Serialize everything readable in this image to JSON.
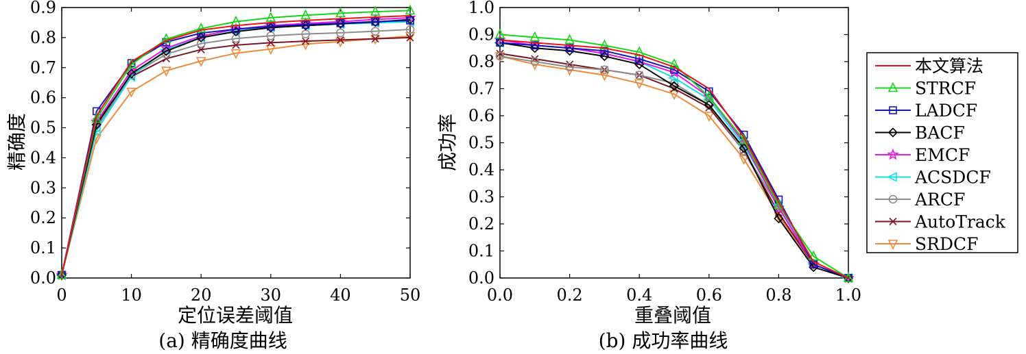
{
  "chart_data": [
    {
      "type": "line",
      "caption": "(a) 精确度曲线",
      "xlabel": "定位误差阈值",
      "ylabel": "精确度",
      "xlim": [
        0,
        50
      ],
      "ylim": [
        0,
        0.9
      ],
      "xticks": [
        0,
        10,
        20,
        30,
        40,
        50
      ],
      "xtick_labels": [
        "0",
        "10",
        "20",
        "30",
        "40",
        "50"
      ],
      "yticks": [
        0,
        0.1,
        0.2,
        0.3,
        0.4,
        0.5,
        0.6,
        0.7,
        0.8,
        0.9
      ],
      "ytick_labels": [
        "0.0",
        "0.1",
        "0.2",
        "0.3",
        "0.4",
        "0.5",
        "0.6",
        "0.7",
        "0.8",
        "0.9"
      ],
      "grid": false,
      "x": [
        0,
        5,
        10,
        15,
        20,
        25,
        30,
        35,
        40,
        45,
        50
      ],
      "series": [
        {
          "name": "本文算法",
          "values": [
            0.01,
            0.54,
            0.72,
            0.79,
            0.825,
            0.84,
            0.85,
            0.857,
            0.863,
            0.868,
            0.873
          ]
        },
        {
          "name": "STRCF",
          "values": [
            0.01,
            0.53,
            0.71,
            0.795,
            0.83,
            0.853,
            0.866,
            0.874,
            0.881,
            0.886,
            0.89
          ]
        },
        {
          "name": "LADCF",
          "values": [
            0.01,
            0.555,
            0.715,
            0.785,
            0.815,
            0.828,
            0.837,
            0.843,
            0.848,
            0.853,
            0.857
          ]
        },
        {
          "name": "BACF",
          "values": [
            0.01,
            0.51,
            0.68,
            0.755,
            0.8,
            0.82,
            0.833,
            0.84,
            0.846,
            0.852,
            0.86
          ]
        },
        {
          "name": "EMCF",
          "values": [
            0.01,
            0.52,
            0.69,
            0.765,
            0.805,
            0.828,
            0.84,
            0.847,
            0.853,
            0.86,
            0.866
          ]
        },
        {
          "name": "ACSDCF",
          "values": [
            0.01,
            0.49,
            0.67,
            0.76,
            0.8,
            0.822,
            0.834,
            0.84,
            0.845,
            0.849,
            0.853
          ]
        },
        {
          "name": "ARCF",
          "values": [
            0.01,
            0.5,
            0.675,
            0.745,
            0.78,
            0.797,
            0.806,
            0.812,
            0.816,
            0.821,
            0.827
          ]
        },
        {
          "name": "AutoTrack",
          "values": [
            0.01,
            0.52,
            0.67,
            0.73,
            0.76,
            0.775,
            0.783,
            0.788,
            0.792,
            0.796,
            0.8
          ]
        },
        {
          "name": "SRDCF",
          "values": [
            0.01,
            0.465,
            0.62,
            0.69,
            0.722,
            0.748,
            0.762,
            0.778,
            0.787,
            0.796,
            0.805
          ]
        }
      ]
    },
    {
      "type": "line",
      "caption": "(b) 成功率曲线",
      "xlabel": "重叠阈值",
      "ylabel": "成功率",
      "xlim": [
        0,
        1
      ],
      "ylim": [
        0,
        1
      ],
      "xticks": [
        0,
        0.2,
        0.4,
        0.6,
        0.8,
        1.0
      ],
      "xtick_labels": [
        "0.0",
        "0.2",
        "0.4",
        "0.6",
        "0.8",
        "1.0"
      ],
      "yticks": [
        0,
        0.1,
        0.2,
        0.3,
        0.4,
        0.5,
        0.6,
        0.7,
        0.8,
        0.9,
        1.0
      ],
      "ytick_labels": [
        "0.0",
        "0.1",
        "0.2",
        "0.3",
        "0.4",
        "0.5",
        "0.6",
        "0.7",
        "0.8",
        "0.9",
        "1.0"
      ],
      "grid": false,
      "legend": "right",
      "x": [
        0,
        0.1,
        0.2,
        0.3,
        0.4,
        0.5,
        0.6,
        0.7,
        0.8,
        0.9,
        1.0
      ],
      "series": [
        {
          "name": "本文算法",
          "values": [
            0.88,
            0.87,
            0.86,
            0.85,
            0.825,
            0.78,
            0.7,
            0.52,
            0.28,
            0.06,
            0.0
          ]
        },
        {
          "name": "STRCF",
          "values": [
            0.9,
            0.89,
            0.88,
            0.86,
            0.835,
            0.79,
            0.67,
            0.51,
            0.27,
            0.08,
            0.0
          ]
        },
        {
          "name": "LADCF",
          "values": [
            0.87,
            0.86,
            0.85,
            0.84,
            0.81,
            0.77,
            0.69,
            0.53,
            0.29,
            0.05,
            0.0
          ]
        },
        {
          "name": "BACF",
          "values": [
            0.87,
            0.85,
            0.84,
            0.82,
            0.79,
            0.71,
            0.64,
            0.48,
            0.22,
            0.04,
            0.0
          ]
        },
        {
          "name": "EMCF",
          "values": [
            0.88,
            0.86,
            0.85,
            0.83,
            0.8,
            0.76,
            0.67,
            0.5,
            0.26,
            0.05,
            0.0
          ]
        },
        {
          "name": "ACSDCF",
          "values": [
            0.87,
            0.86,
            0.85,
            0.83,
            0.8,
            0.74,
            0.66,
            0.49,
            0.27,
            0.05,
            0.0
          ]
        },
        {
          "name": "ARCF",
          "values": [
            0.82,
            0.8,
            0.78,
            0.77,
            0.75,
            0.72,
            0.64,
            0.47,
            0.26,
            0.05,
            0.0
          ]
        },
        {
          "name": "AutoTrack",
          "values": [
            0.83,
            0.81,
            0.79,
            0.77,
            0.75,
            0.7,
            0.63,
            0.47,
            0.24,
            0.05,
            0.0
          ]
        },
        {
          "name": "SRDCF",
          "values": [
            0.82,
            0.79,
            0.77,
            0.75,
            0.72,
            0.68,
            0.6,
            0.44,
            0.23,
            0.05,
            0.0
          ]
        }
      ]
    }
  ],
  "legend": {
    "items": [
      {
        "name": "本文算法",
        "color": "#e8141a",
        "marker": "none"
      },
      {
        "name": "STRCF",
        "color": "#16d516",
        "marker": "triangle-up"
      },
      {
        "name": "LADCF",
        "color": "#1414b4",
        "marker": "square"
      },
      {
        "name": "BACF",
        "color": "#000000",
        "marker": "diamond"
      },
      {
        "name": "EMCF",
        "color": "#e619e6",
        "marker": "star"
      },
      {
        "name": "ACSDCF",
        "color": "#10dfe8",
        "marker": "triangle-left"
      },
      {
        "name": "ARCF",
        "color": "#8c8c8c",
        "marker": "circle"
      },
      {
        "name": "AutoTrack",
        "color": "#7a1424",
        "marker": "x"
      },
      {
        "name": "SRDCF",
        "color": "#f08a3a",
        "marker": "triangle-down"
      }
    ]
  }
}
